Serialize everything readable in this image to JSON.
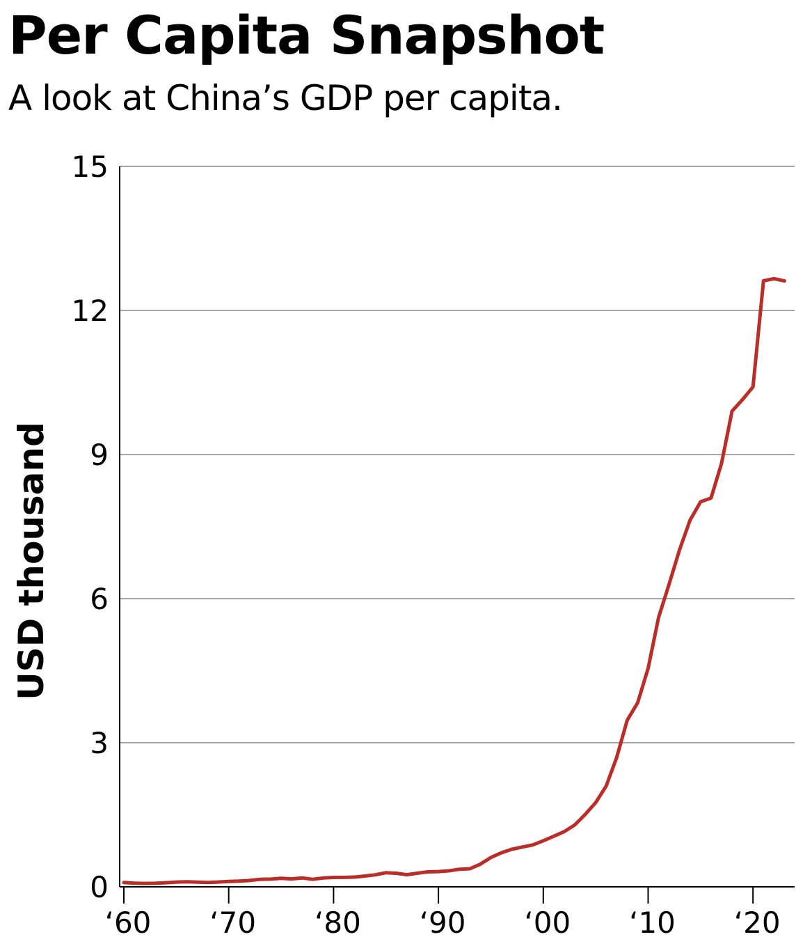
{
  "chart_data": {
    "type": "line",
    "title": "Per Capita Snapshot",
    "subtitle": "A look at China’s GDP per capita.",
    "xlabel": "",
    "ylabel": "USD thousand",
    "ylim": [
      0,
      15
    ],
    "xlim": [
      1960,
      2024
    ],
    "grid": true,
    "yticks": [
      0,
      3,
      6,
      9,
      12,
      15
    ],
    "ytick_labels": [
      "0",
      "3",
      "6",
      "9",
      "12",
      "15"
    ],
    "xticks": [
      1960,
      1970,
      1980,
      1990,
      2000,
      2010,
      2020
    ],
    "xtick_labels": [
      "‘60",
      "‘70",
      "‘80",
      "‘90",
      "‘00",
      "‘10",
      "‘20"
    ],
    "line_color": "#b92e28",
    "series": [
      {
        "name": "GDP per capita",
        "x": [
          1960,
          1961,
          1962,
          1963,
          1964,
          1965,
          1966,
          1967,
          1968,
          1969,
          1970,
          1971,
          1972,
          1973,
          1974,
          1975,
          1976,
          1977,
          1978,
          1979,
          1980,
          1981,
          1982,
          1983,
          1984,
          1985,
          1986,
          1987,
          1988,
          1989,
          1990,
          1991,
          1992,
          1993,
          1994,
          1995,
          1996,
          1997,
          1998,
          1999,
          2000,
          2001,
          2002,
          2003,
          2004,
          2005,
          2006,
          2007,
          2008,
          2009,
          2010,
          2011,
          2012,
          2013,
          2014,
          2015,
          2016,
          2017,
          2018,
          2019,
          2020,
          2021,
          2022,
          2023
        ],
        "values": [
          0.09,
          0.076,
          0.071,
          0.074,
          0.085,
          0.098,
          0.104,
          0.097,
          0.091,
          0.1,
          0.113,
          0.119,
          0.132,
          0.157,
          0.161,
          0.178,
          0.165,
          0.185,
          0.156,
          0.184,
          0.195,
          0.197,
          0.203,
          0.225,
          0.251,
          0.294,
          0.282,
          0.252,
          0.284,
          0.311,
          0.318,
          0.333,
          0.366,
          0.377,
          0.473,
          0.61,
          0.709,
          0.782,
          0.829,
          0.873,
          0.959,
          1.053,
          1.149,
          1.289,
          1.509,
          1.753,
          2.099,
          2.694,
          3.468,
          3.832,
          4.55,
          5.614,
          6.301,
          7.02,
          7.636,
          8.016,
          8.094,
          8.817,
          9.905,
          10.144,
          10.409,
          12.618,
          12.663,
          12.614
        ]
      }
    ]
  }
}
